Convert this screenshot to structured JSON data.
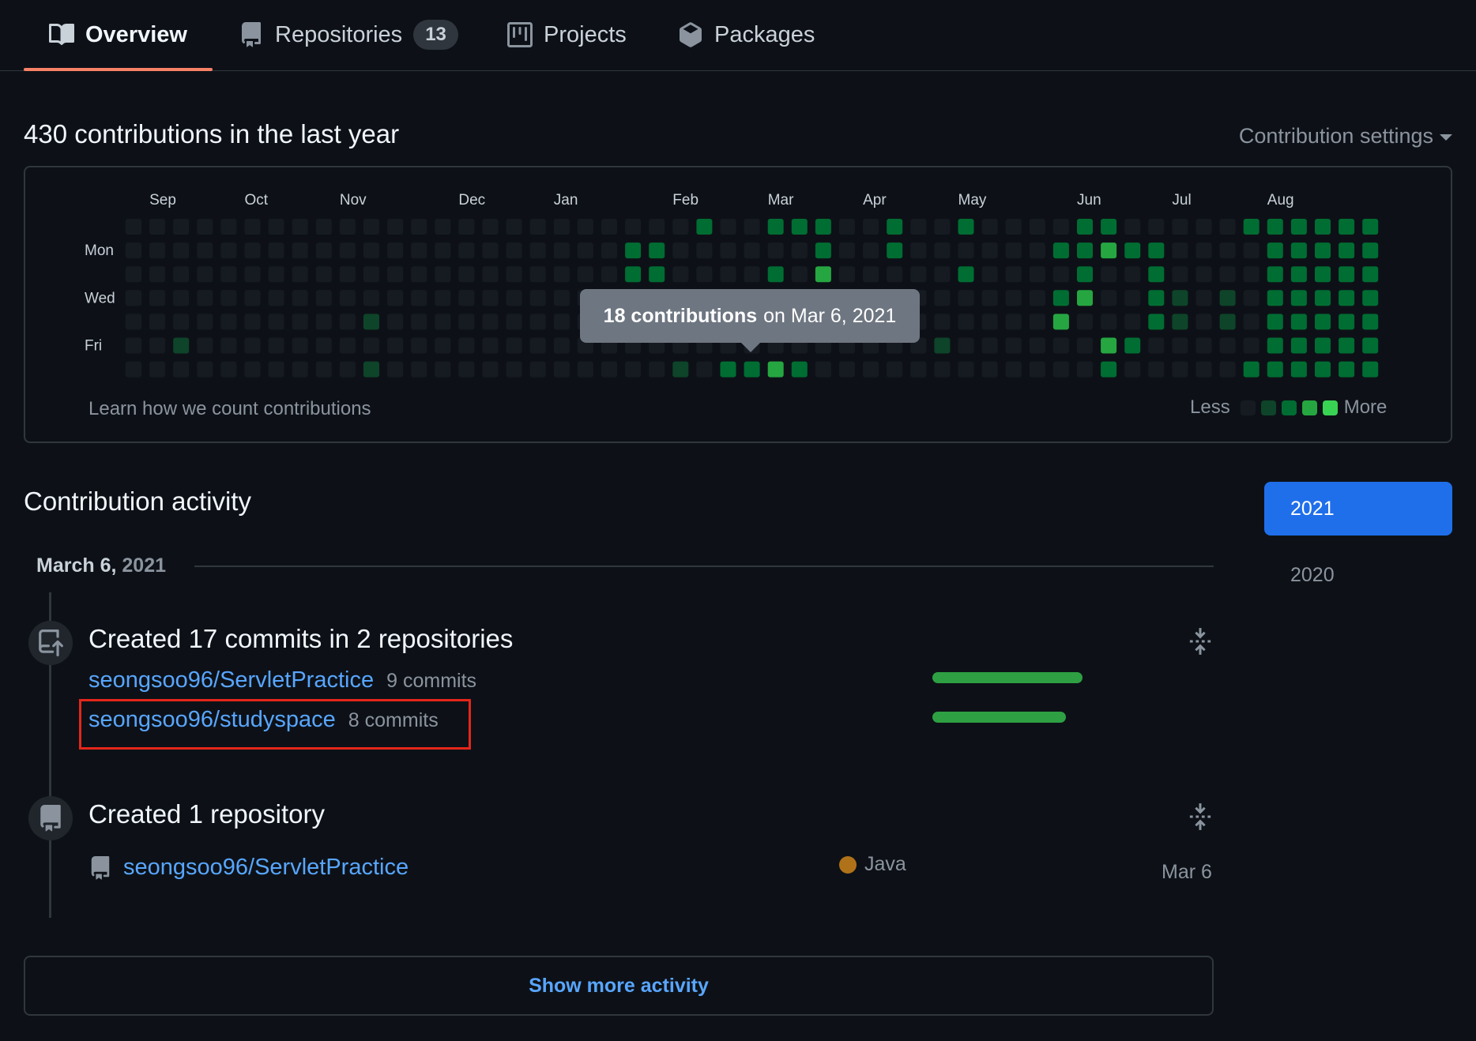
{
  "tabs": [
    {
      "label": "Overview"
    },
    {
      "label": "Repositories",
      "count": "13"
    },
    {
      "label": "Projects"
    },
    {
      "label": "Packages"
    }
  ],
  "contributions": {
    "title": "430 contributions in the last year",
    "settings_label": "Contribution settings",
    "months": [
      "Sep",
      "Oct",
      "Nov",
      "Dec",
      "Jan",
      "Feb",
      "Mar",
      "Apr",
      "May",
      "Jun",
      "Jul",
      "Aug"
    ],
    "day_labels": [
      "Mon",
      "Wed",
      "Fri"
    ],
    "learn_link": "Learn how we count contributions",
    "legend_less": "Less",
    "legend_more": "More",
    "tooltip_count": "18 contributions",
    "tooltip_date": "on Mar 6, 2021",
    "colors": {
      "level0": "#161b22",
      "level1": "#0e4429",
      "level2": "#006d32",
      "level3": "#26a641",
      "level4": "#39d353"
    }
  },
  "activity": {
    "title": "Contribution activity",
    "years": [
      "2021",
      "2020"
    ],
    "date_bold": "March 6,",
    "date_year": "2021",
    "events": [
      {
        "title": "Created 17 commits in 2 repositories",
        "repos": [
          {
            "name": "seongsoo96/ServletPractice",
            "commits": "9 commits",
            "count": 9
          },
          {
            "name": "seongsoo96/studyspace",
            "commits": "8 commits",
            "count": 8
          }
        ]
      },
      {
        "title": "Created 1 repository",
        "repo": {
          "name": "seongsoo96/ServletPractice",
          "language": "Java",
          "date": "Mar 6"
        }
      }
    ],
    "show_more": "Show more activity"
  }
}
